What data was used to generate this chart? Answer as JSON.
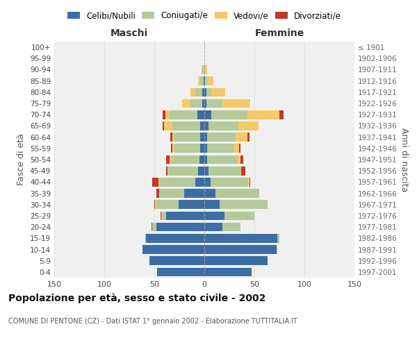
{
  "age_groups": [
    "0-4",
    "5-9",
    "10-14",
    "15-19",
    "20-24",
    "25-29",
    "30-34",
    "35-39",
    "40-44",
    "45-49",
    "50-54",
    "55-59",
    "60-64",
    "65-69",
    "70-74",
    "75-79",
    "80-84",
    "85-89",
    "90-94",
    "95-99",
    "100+"
  ],
  "birth_years": [
    "1997-2001",
    "1992-1996",
    "1987-1991",
    "1982-1986",
    "1977-1981",
    "1972-1976",
    "1967-1971",
    "1962-1966",
    "1957-1961",
    "1952-1956",
    "1947-1951",
    "1942-1946",
    "1937-1941",
    "1932-1936",
    "1927-1931",
    "1922-1926",
    "1917-1921",
    "1912-1916",
    "1907-1911",
    "1902-1906",
    "≤ 1901"
  ],
  "male": {
    "celibi": [
      47,
      55,
      62,
      58,
      48,
      38,
      26,
      20,
      9,
      6,
      5,
      4,
      4,
      4,
      7,
      2,
      2,
      1,
      0,
      0,
      0
    ],
    "coniugati": [
      0,
      0,
      0,
      1,
      4,
      5,
      22,
      25,
      36,
      30,
      28,
      26,
      26,
      28,
      28,
      12,
      7,
      3,
      2,
      0,
      0
    ],
    "vedovi": [
      0,
      0,
      0,
      0,
      0,
      0,
      1,
      0,
      1,
      1,
      2,
      2,
      2,
      8,
      4,
      8,
      5,
      2,
      1,
      0,
      0
    ],
    "divorziati": [
      0,
      0,
      0,
      0,
      1,
      1,
      1,
      3,
      6,
      1,
      3,
      1,
      2,
      2,
      3,
      0,
      0,
      0,
      0,
      0,
      0
    ]
  },
  "female": {
    "nubili": [
      47,
      63,
      72,
      73,
      18,
      20,
      15,
      11,
      6,
      4,
      3,
      3,
      3,
      4,
      7,
      2,
      2,
      1,
      0,
      0,
      0
    ],
    "coniugate": [
      0,
      0,
      1,
      2,
      18,
      30,
      48,
      44,
      38,
      32,
      30,
      26,
      28,
      30,
      36,
      16,
      5,
      2,
      1,
      0,
      0
    ],
    "vedove": [
      0,
      0,
      0,
      0,
      0,
      0,
      0,
      0,
      1,
      1,
      3,
      6,
      12,
      20,
      32,
      28,
      14,
      6,
      2,
      0,
      0
    ],
    "divorziate": [
      0,
      0,
      0,
      0,
      0,
      0,
      0,
      0,
      1,
      4,
      3,
      1,
      2,
      0,
      4,
      0,
      0,
      0,
      0,
      0,
      0
    ]
  },
  "color_celibi": "#3c6ea5",
  "color_coniugati": "#b5c99a",
  "color_vedovi": "#f5c869",
  "color_divorziati": "#c0392b",
  "bg_color": "#f0f0f0",
  "grid_color": "#cccccc",
  "title": "Popolazione per età, sesso e stato civile - 2002",
  "subtitle": "COMUNE DI PENTONE (CZ) - Dati ISTAT 1° gennaio 2002 - Elaborazione TUTTITALIA.IT",
  "xlabel_left": "Maschi",
  "xlabel_right": "Femmine",
  "ylabel_left": "Fasce di età",
  "ylabel_right": "Anni di nascita",
  "xlim": 150
}
